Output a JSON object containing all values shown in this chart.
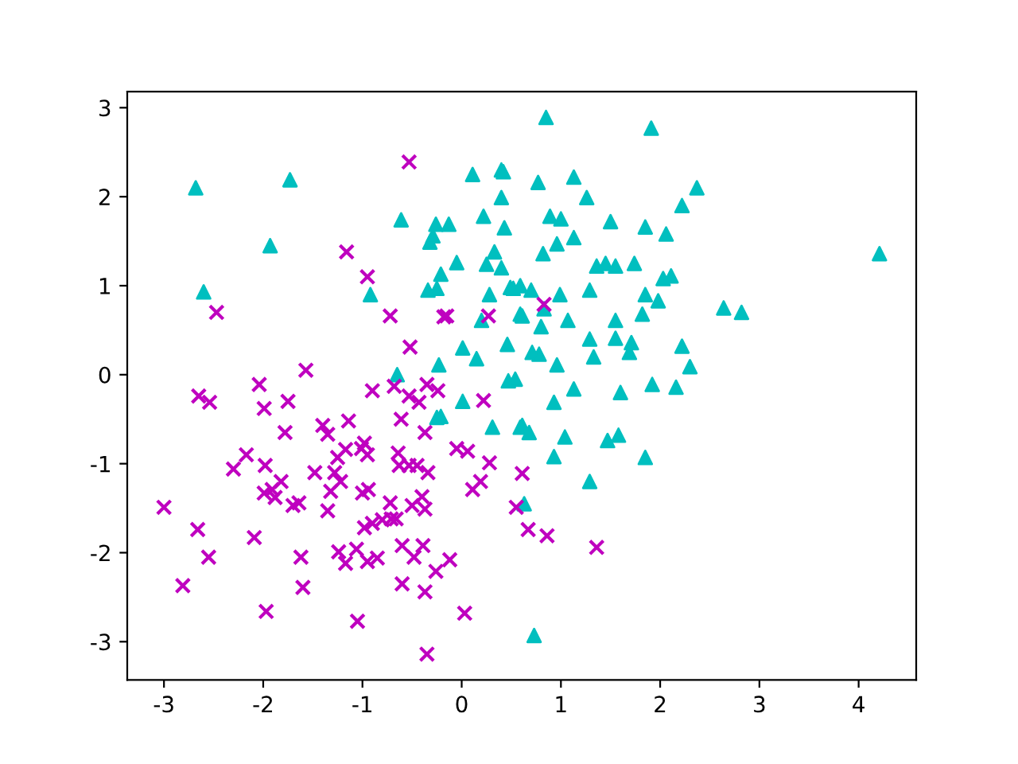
{
  "chart_data": {
    "type": "scatter",
    "xlim": [
      -3.37,
      4.58
    ],
    "ylim": [
      -3.43,
      3.18
    ],
    "xticks": [
      -3,
      -2,
      -1,
      0,
      1,
      2,
      3,
      4
    ],
    "yticks": [
      -3,
      -2,
      -1,
      0,
      1,
      2,
      3
    ],
    "grid": false,
    "series": [
      {
        "color": "#00bfbf",
        "marker": "triangle",
        "x": [
          -2.68,
          -2.6,
          -1.73,
          -1.93,
          -0.92,
          -0.61,
          -0.65,
          -0.21,
          0.11,
          0.4,
          0.42,
          0.4,
          -0.26,
          -0.13,
          -0.32,
          -0.29,
          0.22,
          0.43,
          0.33,
          0.25,
          0.4,
          -0.05,
          -0.21,
          -0.34,
          -0.25,
          0.28,
          0.49,
          0.59,
          0.2,
          0.59,
          0.01,
          0.15,
          0.46,
          -0.23,
          0.47,
          0.54,
          0.85,
          1.91,
          0.77,
          1.13,
          1.26,
          2.37,
          2.22,
          0.89,
          1.0,
          1.5,
          1.85,
          2.06,
          0.96,
          1.13,
          0.82,
          1.36,
          1.45,
          1.55,
          1.74,
          2.03,
          2.11,
          4.21,
          0.52,
          0.7,
          0.99,
          1.29,
          1.85,
          1.98,
          2.64,
          2.82,
          0.83,
          0.61,
          0.8,
          1.07,
          1.55,
          1.82,
          1.29,
          1.55,
          1.71,
          1.69,
          2.22,
          2.3,
          1.33,
          0.71,
          0.78,
          0.96,
          1.13,
          1.6,
          1.92,
          2.16,
          0.93,
          0.61,
          0.68,
          1.04,
          1.47,
          1.58,
          0.93,
          1.85,
          1.29,
          0.63,
          0.73,
          0.01,
          -0.25,
          0.31,
          0.59
        ],
        "values": [
          2.1,
          0.93,
          2.19,
          1.45,
          0.9,
          1.74,
          0.0,
          -0.47,
          2.25,
          2.3,
          2.28,
          1.99,
          1.69,
          1.69,
          1.49,
          1.56,
          1.78,
          1.65,
          1.38,
          1.24,
          1.2,
          1.26,
          1.13,
          0.95,
          0.97,
          0.9,
          0.98,
          1.0,
          0.61,
          0.68,
          0.3,
          0.18,
          0.34,
          0.11,
          -0.07,
          -0.05,
          2.89,
          2.77,
          2.16,
          2.22,
          1.99,
          2.1,
          1.9,
          1.78,
          1.75,
          1.72,
          1.66,
          1.58,
          1.47,
          1.54,
          1.36,
          1.22,
          1.25,
          1.22,
          1.25,
          1.08,
          1.11,
          1.36,
          0.97,
          0.95,
          0.9,
          0.95,
          0.9,
          0.83,
          0.75,
          0.7,
          0.74,
          0.66,
          0.54,
          0.61,
          0.61,
          0.68,
          0.4,
          0.41,
          0.36,
          0.25,
          0.32,
          0.09,
          0.2,
          0.25,
          0.23,
          0.11,
          -0.16,
          -0.2,
          -0.11,
          -0.14,
          -0.31,
          -0.57,
          -0.65,
          -0.7,
          -0.74,
          -0.68,
          -0.92,
          -0.93,
          -1.2,
          -1.45,
          -2.93,
          -0.3,
          -0.48,
          -0.59,
          -0.59
        ]
      },
      {
        "color": "#bf00bf",
        "marker": "cross",
        "x": [
          0.61,
          0.55,
          0.67,
          0.86,
          1.36,
          -2.65,
          -2.54,
          -2.04,
          -1.99,
          -1.75,
          -1.78,
          -0.9,
          -0.68,
          -0.53,
          -0.43,
          -0.24,
          -0.35,
          0.22,
          -1.14,
          -0.61,
          -1.4,
          -1.35,
          -0.37,
          -2.17,
          -2.3,
          -1.98,
          -1.82,
          -1.99,
          -1.88,
          -1.91,
          -1.7,
          -1.64,
          -1.48,
          -1.28,
          -1.25,
          -1.17,
          -1.22,
          -1.32,
          -1.35,
          -1.01,
          -0.95,
          -0.98,
          -1.0,
          -0.94,
          -0.64,
          -0.63,
          -0.53,
          -0.45,
          -0.34,
          -0.05,
          0.06,
          0.28,
          0.19,
          0.11,
          -0.72,
          -0.5,
          -0.4,
          -0.37,
          -3.0,
          -2.66,
          -2.55,
          -2.81,
          -2.09,
          -1.97,
          -1.62,
          -1.6,
          -0.98,
          -0.9,
          -0.8,
          -0.71,
          -0.66,
          -1.24,
          -1.17,
          -1.06,
          -0.95,
          -0.85,
          -0.6,
          -0.48,
          -0.39,
          -0.26,
          -0.12,
          -0.6,
          -0.37,
          -1.05,
          0.03,
          -0.35,
          -0.53,
          -1.16,
          -0.95,
          -2.47,
          -0.72,
          -0.18,
          -0.15,
          0.27,
          -0.52,
          -1.57,
          0.83
        ],
        "values": [
          -1.11,
          -1.49,
          -1.74,
          -1.81,
          -1.94,
          -0.24,
          -0.31,
          -0.11,
          -0.38,
          -0.3,
          -0.65,
          -0.18,
          -0.13,
          -0.24,
          -0.31,
          -0.18,
          -0.11,
          -0.29,
          -0.52,
          -0.5,
          -0.57,
          -0.67,
          -0.65,
          -0.9,
          -1.06,
          -1.02,
          -1.2,
          -1.33,
          -1.38,
          -1.29,
          -1.47,
          -1.44,
          -1.1,
          -1.1,
          -0.93,
          -0.84,
          -1.2,
          -1.31,
          -1.53,
          -0.83,
          -0.9,
          -0.77,
          -1.33,
          -1.29,
          -0.88,
          -1.02,
          -1.02,
          -1.02,
          -1.1,
          -0.83,
          -0.86,
          -0.99,
          -1.2,
          -1.29,
          -1.44,
          -1.47,
          -1.37,
          -1.51,
          -1.49,
          -1.74,
          -2.05,
          -2.37,
          -1.83,
          -2.66,
          -2.05,
          -2.39,
          -1.72,
          -1.67,
          -1.63,
          -1.62,
          -1.62,
          -1.99,
          -2.12,
          -1.96,
          -2.1,
          -2.06,
          -1.92,
          -2.05,
          -1.92,
          -2.21,
          -2.08,
          -2.35,
          -2.44,
          -2.77,
          -2.68,
          -3.14,
          2.39,
          1.38,
          1.1,
          0.7,
          0.66,
          0.65,
          0.66,
          0.66,
          0.31,
          0.05,
          0.79
        ]
      }
    ]
  }
}
